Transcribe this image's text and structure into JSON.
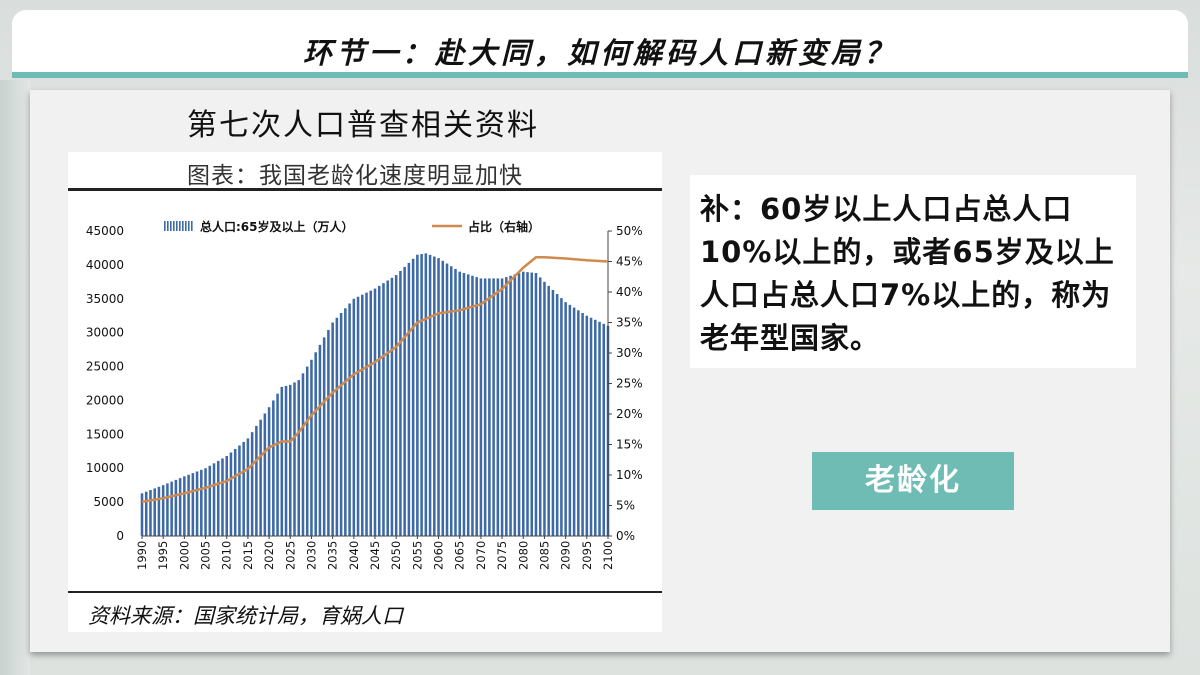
{
  "header": {
    "title": "环节一：赴大同，如何解码人口新变局？"
  },
  "panel": {
    "title": "第七次人口普查相关资料"
  },
  "chart_card": {
    "title": "图表：我国老龄化速度明显加快",
    "source": "资料来源：国家统计局，育娲人口"
  },
  "note": {
    "text": "补：60岁以上人口占总人口10%以上的，或者65岁及以上人口占总人口7%以上的，称为老年型国家。"
  },
  "tag": {
    "label": "老龄化"
  },
  "chart_data": {
    "type": "bar",
    "title": "图表：我国老龄化速度明显加快",
    "xlabel": "",
    "ylabel": "",
    "x_tick_labels": [
      "1990",
      "1995",
      "2000",
      "2005",
      "2010",
      "2015",
      "2020",
      "2025",
      "2030",
      "2035",
      "2040",
      "2045",
      "2050",
      "2055",
      "2060",
      "2065",
      "2070",
      "2075",
      "2080",
      "2085",
      "2090",
      "2095",
      "2100"
    ],
    "ylim": [
      0,
      45000
    ],
    "y_ticks": [
      0,
      5000,
      10000,
      15000,
      20000,
      25000,
      30000,
      35000,
      40000,
      45000
    ],
    "y2lim": [
      0,
      50
    ],
    "y2_ticks": [
      "0%",
      "5%",
      "10%",
      "15%",
      "20%",
      "25%",
      "30%",
      "35%",
      "40%",
      "45%",
      "50%"
    ],
    "grid": false,
    "legend_position": "top",
    "series": [
      {
        "name": "总人口:65岁及以上（万人）",
        "type": "bar",
        "axis": "left",
        "color": "#3d6aa6",
        "x": [
          1990,
          1995,
          2000,
          2005,
          2010,
          2015,
          2020,
          2023,
          2025,
          2027,
          2030,
          2035,
          2040,
          2045,
          2050,
          2055,
          2057,
          2060,
          2065,
          2070,
          2075,
          2080,
          2083,
          2085,
          2090,
          2095,
          2100
        ],
        "values": [
          6300,
          7500,
          8800,
          10000,
          11800,
          14400,
          19000,
          22000,
          22300,
          23000,
          26000,
          31500,
          35000,
          36500,
          38500,
          41500,
          41700,
          41000,
          39000,
          38000,
          38000,
          39000,
          38800,
          37500,
          34500,
          32500,
          31000
        ]
      },
      {
        "name": "占比（右轴）",
        "type": "line",
        "axis": "right",
        "color": "#d08a4e",
        "x": [
          1990,
          1995,
          2000,
          2005,
          2010,
          2015,
          2020,
          2023,
          2025,
          2027,
          2030,
          2035,
          2040,
          2045,
          2050,
          2055,
          2060,
          2065,
          2070,
          2075,
          2080,
          2083,
          2085,
          2090,
          2095,
          2100
        ],
        "values": [
          5.6,
          6.2,
          7.0,
          7.9,
          9.0,
          11.0,
          14.5,
          15.5,
          15.5,
          17.0,
          19.8,
          23.5,
          26.5,
          28.5,
          31.0,
          35.0,
          36.5,
          37.0,
          38.0,
          40.5,
          44.0,
          45.7,
          45.7,
          45.5,
          45.2,
          45.0
        ]
      }
    ]
  }
}
